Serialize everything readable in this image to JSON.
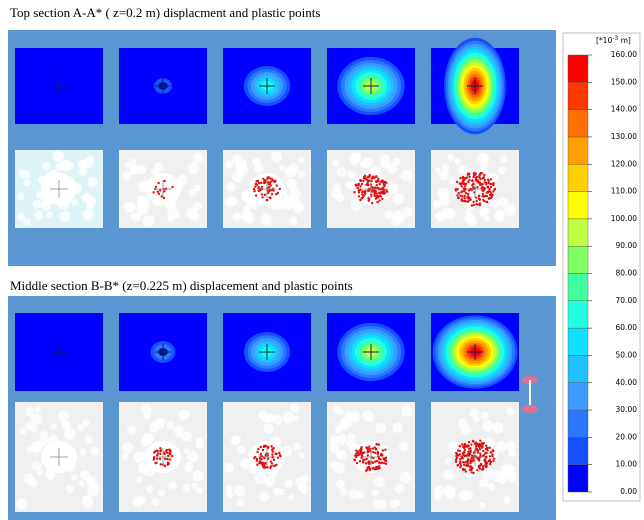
{
  "sections": [
    {
      "title": "Top section A-A* ( z=0.2 m) displacment and plastic points"
    },
    {
      "title": "Middle section B-B* (z=0.225 m) displacement and plastic points"
    }
  ],
  "colorbar": {
    "unit": "[*10",
    "unit_exponent": "-3",
    "unit_suffix": " m]",
    "ticks": [
      {
        "value": 160,
        "label": "160.00"
      },
      {
        "value": 150,
        "label": "150.00"
      },
      {
        "value": 140,
        "label": "140.00"
      },
      {
        "value": 130,
        "label": "130.00"
      },
      {
        "value": 120,
        "label": "120.00"
      },
      {
        "value": 110,
        "label": "110.00"
      },
      {
        "value": 100,
        "label": "100.00"
      },
      {
        "value": 90,
        "label": "90.00"
      },
      {
        "value": 80,
        "label": "80.00"
      },
      {
        "value": 70,
        "label": "70.00"
      },
      {
        "value": 60,
        "label": "60.00"
      },
      {
        "value": 50,
        "label": "50.00"
      },
      {
        "value": 40,
        "label": "40.00"
      },
      {
        "value": 30,
        "label": "30.00"
      },
      {
        "value": 20,
        "label": "20.00"
      },
      {
        "value": 10,
        "label": "10.00"
      },
      {
        "value": 0,
        "label": "0.00"
      }
    ],
    "colors": [
      "#0000ff",
      "#1450ff",
      "#2a78ff",
      "#3a9cff",
      "#20c0ff",
      "#10e0ff",
      "#20ffe0",
      "#40ffa0",
      "#80ff60",
      "#c0ff40",
      "#ffff00",
      "#ffd000",
      "#ffa000",
      "#ff7000",
      "#ff3800",
      "#ff0000"
    ]
  }
}
